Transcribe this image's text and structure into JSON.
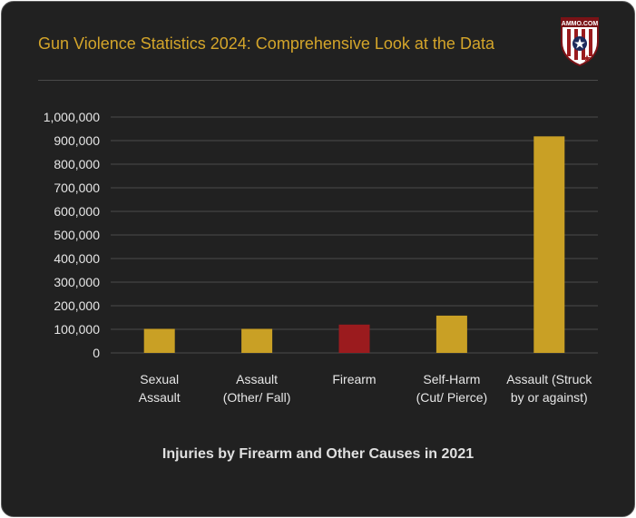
{
  "header": {
    "title": "Gun Violence Statistics 2024: Comprehensive Look at the Data",
    "logo_text": "AMMO.COM"
  },
  "colors": {
    "background": "#212121",
    "title": "#d4a52a",
    "bar_default": "#c9a025",
    "bar_highlight": "#9b1b1e",
    "grid": "#4a4a4a",
    "tick_text": "#e6e6e6"
  },
  "chart_data": {
    "type": "bar",
    "categories": [
      [
        "Sexual",
        "Assault"
      ],
      [
        "Assault",
        "(Other/ Fall)"
      ],
      [
        "Firearm"
      ],
      [
        "Self-Harm",
        "(Cut/ Pierce)"
      ],
      [
        "Assault (Struck",
        "by or against)"
      ]
    ],
    "values": [
      102000,
      102000,
      120000,
      158000,
      918000
    ],
    "highlight_index": 2,
    "xlabel": "Injuries by Firearm and Other Causes in 2021",
    "ylabel": "",
    "ylim": [
      0,
      1000000
    ],
    "yticks": [
      0,
      100000,
      200000,
      300000,
      400000,
      500000,
      600000,
      700000,
      800000,
      900000,
      1000000
    ],
    "ytick_labels": [
      "0",
      "100,000",
      "200,000",
      "300,000",
      "400,000",
      "500,000",
      "600,000",
      "700,000",
      "800,000",
      "900,000",
      "1,000,000"
    ],
    "grid": true,
    "legend": "none"
  }
}
